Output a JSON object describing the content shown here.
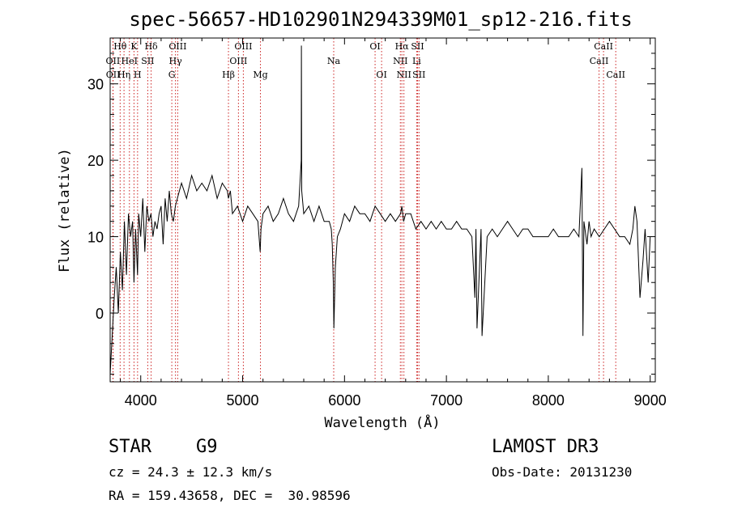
{
  "chart_data": {
    "type": "line",
    "title": "spec-56657-HD102901N294339M01_sp12-216.fits",
    "xlabel": "Wavelength (Å)",
    "ylabel": "Flux (relative)",
    "xlim": [
      3700,
      9050
    ],
    "ylim": [
      -9,
      36
    ],
    "xticks": [
      4000,
      5000,
      6000,
      7000,
      8000,
      9000
    ],
    "yticks": [
      0,
      10,
      20,
      30
    ],
    "grid": false,
    "series": [
      {
        "name": "flux",
        "x": [
          3700,
          3720,
          3740,
          3760,
          3780,
          3800,
          3820,
          3840,
          3860,
          3880,
          3900,
          3920,
          3934,
          3950,
          3969,
          3980,
          4000,
          4020,
          4040,
          4060,
          4080,
          4101,
          4120,
          4140,
          4160,
          4180,
          4200,
          4220,
          4240,
          4260,
          4280,
          4300,
          4320,
          4340,
          4360,
          4380,
          4400,
          4450,
          4500,
          4550,
          4600,
          4650,
          4700,
          4750,
          4800,
          4850,
          4861,
          4880,
          4900,
          4950,
          5000,
          5050,
          5100,
          5150,
          5172,
          5180,
          5200,
          5250,
          5300,
          5350,
          5400,
          5450,
          5500,
          5550,
          5575,
          5577,
          5580,
          5600,
          5650,
          5700,
          5750,
          5800,
          5850,
          5870,
          5880,
          5890,
          5896,
          5910,
          5930,
          5960,
          6000,
          6050,
          6100,
          6150,
          6200,
          6250,
          6300,
          6350,
          6400,
          6450,
          6500,
          6550,
          6563,
          6580,
          6600,
          6650,
          6700,
          6750,
          6800,
          6850,
          6900,
          6950,
          7000,
          7050,
          7100,
          7150,
          7200,
          7250,
          7280,
          7290,
          7300,
          7340,
          7350,
          7400,
          7450,
          7500,
          7550,
          7600,
          7650,
          7700,
          7750,
          7800,
          7850,
          7900,
          7950,
          8000,
          8050,
          8100,
          8150,
          8200,
          8250,
          8300,
          8330,
          8340,
          8350,
          8380,
          8400,
          8420,
          8450,
          8500,
          8550,
          8600,
          8650,
          8700,
          8750,
          8800,
          8830,
          8850,
          8870,
          8900,
          8930,
          8950,
          8980,
          9000
        ],
        "values": [
          -8,
          -3,
          2,
          6,
          0,
          8,
          3,
          12,
          5,
          13,
          10,
          12,
          4,
          11,
          5,
          13,
          10,
          15,
          8,
          14,
          12,
          13,
          10,
          12,
          11,
          13,
          14,
          9,
          15,
          12,
          16,
          13,
          12,
          14,
          15,
          16,
          17,
          15,
          18,
          16,
          17,
          16,
          18,
          15,
          17,
          16,
          15,
          16,
          13,
          14,
          12,
          14,
          13,
          12,
          8,
          11,
          13,
          14,
          12,
          13,
          15,
          13,
          12,
          14,
          20,
          35,
          16,
          13,
          14,
          12,
          14,
          12,
          12,
          11,
          9,
          4,
          -2,
          6,
          10,
          11,
          13,
          12,
          14,
          13,
          13,
          12,
          14,
          13,
          12,
          13,
          12,
          13,
          14,
          12,
          13,
          13,
          11,
          12,
          11,
          12,
          11,
          12,
          11,
          11,
          12,
          11,
          11,
          10,
          2,
          11,
          -2,
          11,
          -3,
          10,
          11,
          10,
          11,
          12,
          11,
          10,
          11,
          11,
          10,
          10,
          10,
          10,
          11,
          10,
          10,
          10,
          11,
          10,
          19,
          -3,
          12,
          9,
          12,
          10,
          11,
          10,
          11,
          12,
          11,
          10,
          10,
          9,
          11,
          14,
          12,
          2,
          7,
          11,
          4,
          10
        ]
      }
    ],
    "lines": [
      {
        "label": "Hθ",
        "wave": 3798,
        "row": 0
      },
      {
        "label": "OII",
        "wave": 3727,
        "row": 1
      },
      {
        "label": "OII",
        "wave": 3729,
        "row": 2
      },
      {
        "label": "Hη",
        "wave": 3836,
        "row": 2
      },
      {
        "label": "HeI",
        "wave": 3889,
        "row": 1
      },
      {
        "label": "K",
        "wave": 3934,
        "row": 0
      },
      {
        "label": "H",
        "wave": 3969,
        "row": 2
      },
      {
        "label": "SII",
        "wave": 4069,
        "row": 1
      },
      {
        "label": "Hδ",
        "wave": 4102,
        "row": 0
      },
      {
        "label": "G",
        "wave": 4305,
        "row": 2
      },
      {
        "label": "Hγ",
        "wave": 4341,
        "row": 1
      },
      {
        "label": "OIII",
        "wave": 4363,
        "row": 0
      },
      {
        "label": "Hβ",
        "wave": 4861,
        "row": 2
      },
      {
        "label": "OIII",
        "wave": 4959,
        "row": 1
      },
      {
        "label": "OIII",
        "wave": 5007,
        "row": 0
      },
      {
        "label": "Mg",
        "wave": 5175,
        "row": 2
      },
      {
        "label": "Na",
        "wave": 5894,
        "row": 1
      },
      {
        "label": "OI",
        "wave": 6300,
        "row": 0
      },
      {
        "label": "OI",
        "wave": 6364,
        "row": 2
      },
      {
        "label": "NII",
        "wave": 6548,
        "row": 1
      },
      {
        "label": "Hα",
        "wave": 6563,
        "row": 0
      },
      {
        "label": "NII",
        "wave": 6583,
        "row": 2
      },
      {
        "label": "Li",
        "wave": 6708,
        "row": 1
      },
      {
        "label": "SII",
        "wave": 6717,
        "row": 0
      },
      {
        "label": "SII",
        "wave": 6731,
        "row": 2
      },
      {
        "label": "CaII",
        "wave": 8498,
        "row": 1
      },
      {
        "label": "CaII",
        "wave": 8542,
        "row": 0
      },
      {
        "label": "CaII",
        "wave": 8662,
        "row": 2
      }
    ]
  },
  "info": {
    "class": "STAR",
    "subclass": "G9",
    "survey": "LAMOST DR3",
    "cz": "cz = 24.3 ± 12.3 km/s",
    "obs_date": "Obs-Date: 20131230",
    "coords": "RA = 159.43658, DEC =  30.98596"
  },
  "colors": {
    "line_markers": "#cc2222",
    "spectrum": "#000000"
  }
}
